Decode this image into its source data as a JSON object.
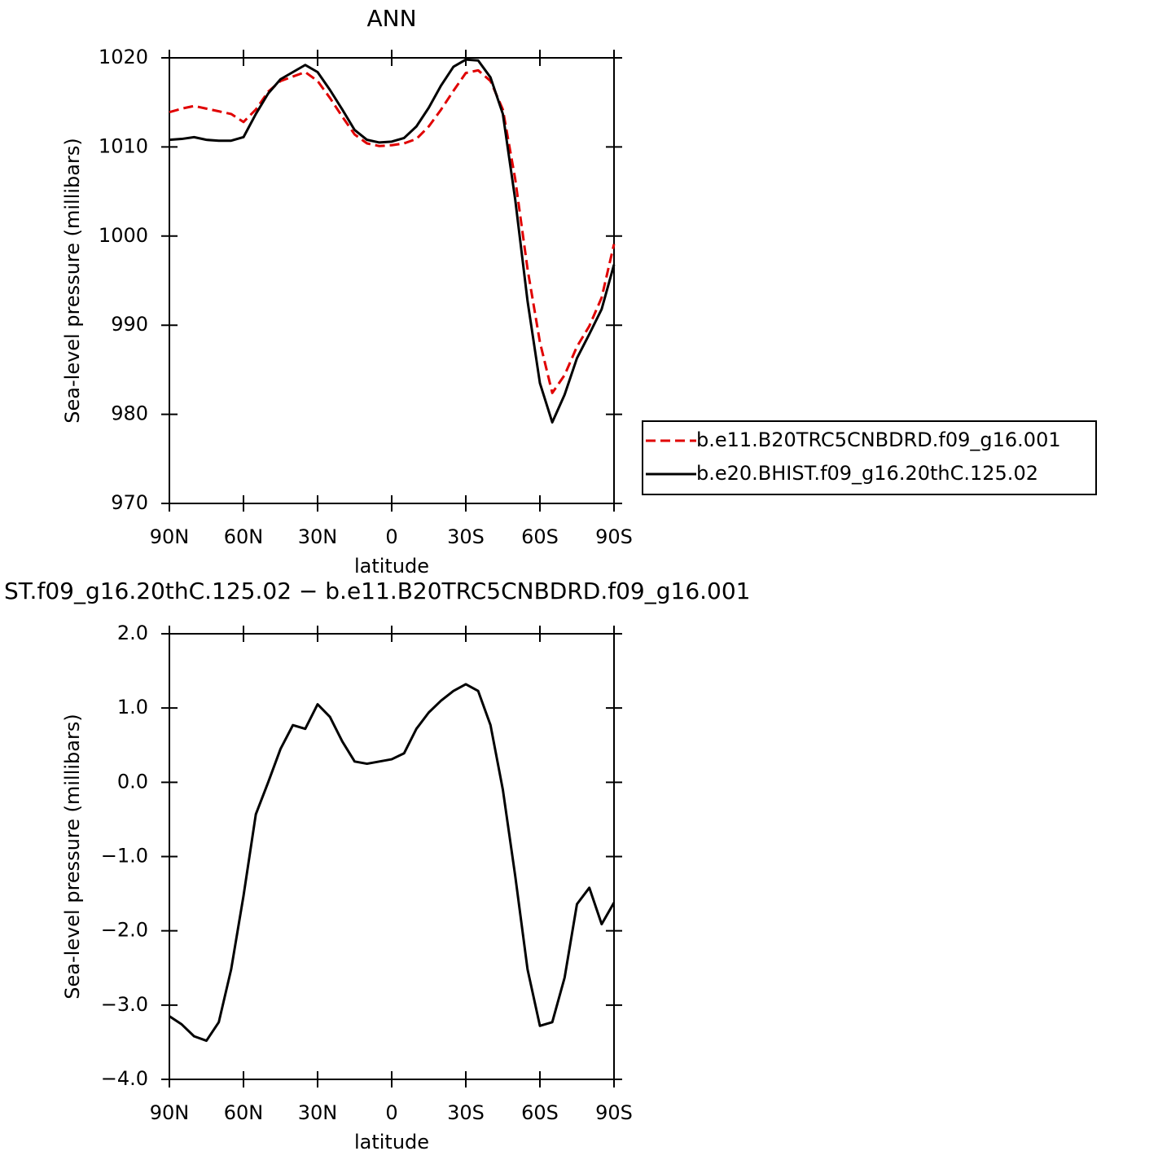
{
  "chart_data": [
    {
      "type": "line",
      "title": "ANN",
      "x_label": "latitude",
      "y_label": "Sea-level pressure (millibars)",
      "x": [
        90,
        85,
        80,
        75,
        70,
        65,
        60,
        55,
        50,
        45,
        40,
        35,
        30,
        25,
        20,
        15,
        10,
        5,
        0,
        -5,
        -10,
        -15,
        -20,
        -25,
        -30,
        -35,
        -40,
        -45,
        -50,
        -55,
        -60,
        -65,
        -70,
        -75,
        -80,
        -85,
        -90
      ],
      "xlim": [
        90,
        -90
      ],
      "xticks": [
        {
          "value": 90,
          "label": "90N"
        },
        {
          "value": 60,
          "label": "60N"
        },
        {
          "value": 30,
          "label": "30N"
        },
        0,
        {
          "value": -30,
          "label": "30S"
        },
        {
          "value": -60,
          "label": "60S"
        },
        {
          "value": -90,
          "label": "90S"
        }
      ],
      "ylim": [
        970,
        1020
      ],
      "yticks": [
        970,
        980,
        990,
        1000,
        1010,
        1020
      ],
      "legend": "right",
      "series": [
        {
          "name": "b.e11.B20TRC5CNBDRD.f09_g16.001",
          "color": "#e00000",
          "style": "dashed",
          "values": [
            1013.9,
            1014.3,
            1014.6,
            1014.3,
            1014.0,
            1013.7,
            1012.8,
            1014.2,
            1016.2,
            1017.4,
            1017.9,
            1018.4,
            1017.4,
            1015.5,
            1013.4,
            1011.4,
            1010.4,
            1010.1,
            1010.2,
            1010.4,
            1010.9,
            1012.3,
            1014.2,
            1016.3,
            1018.3,
            1018.6,
            1017.4,
            1014.2,
            1006.4,
            996.3,
            988.1,
            982.4,
            984.4,
            987.6,
            989.9,
            993.1,
            999.1
          ]
        },
        {
          "name": "b.e20.BHIST.f09_g16.20thC.125.02",
          "color": "#000000",
          "style": "solid",
          "values": [
            1010.8,
            1010.9,
            1011.1,
            1010.8,
            1010.7,
            1010.7,
            1011.1,
            1013.7,
            1016.0,
            1017.6,
            1018.4,
            1019.2,
            1018.4,
            1016.4,
            1014.2,
            1011.9,
            1010.8,
            1010.5,
            1010.6,
            1011.0,
            1012.3,
            1014.4,
            1016.9,
            1019.0,
            1019.8,
            1019.7,
            1017.8,
            1013.7,
            1004.1,
            992.7,
            983.5,
            979.1,
            982.2,
            986.3,
            989.0,
            991.8,
            996.8
          ]
        }
      ]
    },
    {
      "type": "line",
      "title": "ST.f09_g16.20thC.125.02 − b.e11.B20TRC5CNBDRD.f09_g16.001",
      "x_label": "latitude",
      "y_label": "Sea-level pressure (millibars)",
      "x": [
        90,
        85,
        80,
        75,
        70,
        65,
        60,
        55,
        50,
        45,
        40,
        35,
        30,
        25,
        20,
        15,
        10,
        5,
        0,
        -5,
        -10,
        -15,
        -20,
        -25,
        -30,
        -35,
        -40,
        -45,
        -50,
        -55,
        -60,
        -65,
        -70,
        -75,
        -80,
        -85,
        -90
      ],
      "xlim": [
        90,
        -90
      ],
      "xticks": [
        {
          "value": 90,
          "label": "90N"
        },
        {
          "value": 60,
          "label": "60N"
        },
        {
          "value": 30,
          "label": "30N"
        },
        0,
        {
          "value": -30,
          "label": "30S"
        },
        {
          "value": -60,
          "label": "60S"
        },
        {
          "value": -90,
          "label": "90S"
        }
      ],
      "ylim": [
        -4,
        2
      ],
      "yticks": [
        {
          "value": -4,
          "label": "−4.0"
        },
        {
          "value": -3,
          "label": "−3.0"
        },
        {
          "value": -2,
          "label": "−2.0"
        },
        {
          "value": -1,
          "label": "−1.0"
        },
        {
          "value": 0,
          "label": "0.0"
        },
        {
          "value": 1,
          "label": "1.0"
        },
        {
          "value": 2,
          "label": "2.0"
        }
      ],
      "series": [
        {
          "color": "#000000",
          "style": "solid",
          "values": [
            -3.15,
            -3.26,
            -3.42,
            -3.48,
            -3.23,
            -2.52,
            -1.53,
            -0.43,
            0.0,
            0.45,
            0.77,
            0.72,
            1.05,
            0.88,
            0.55,
            0.28,
            0.25,
            0.28,
            0.31,
            0.39,
            0.72,
            0.94,
            1.1,
            1.23,
            1.32,
            1.23,
            0.77,
            -0.1,
            -1.26,
            -2.52,
            -3.28,
            -3.23,
            -2.63,
            -1.64,
            -1.42,
            -1.91,
            -1.62
          ]
        }
      ]
    }
  ]
}
